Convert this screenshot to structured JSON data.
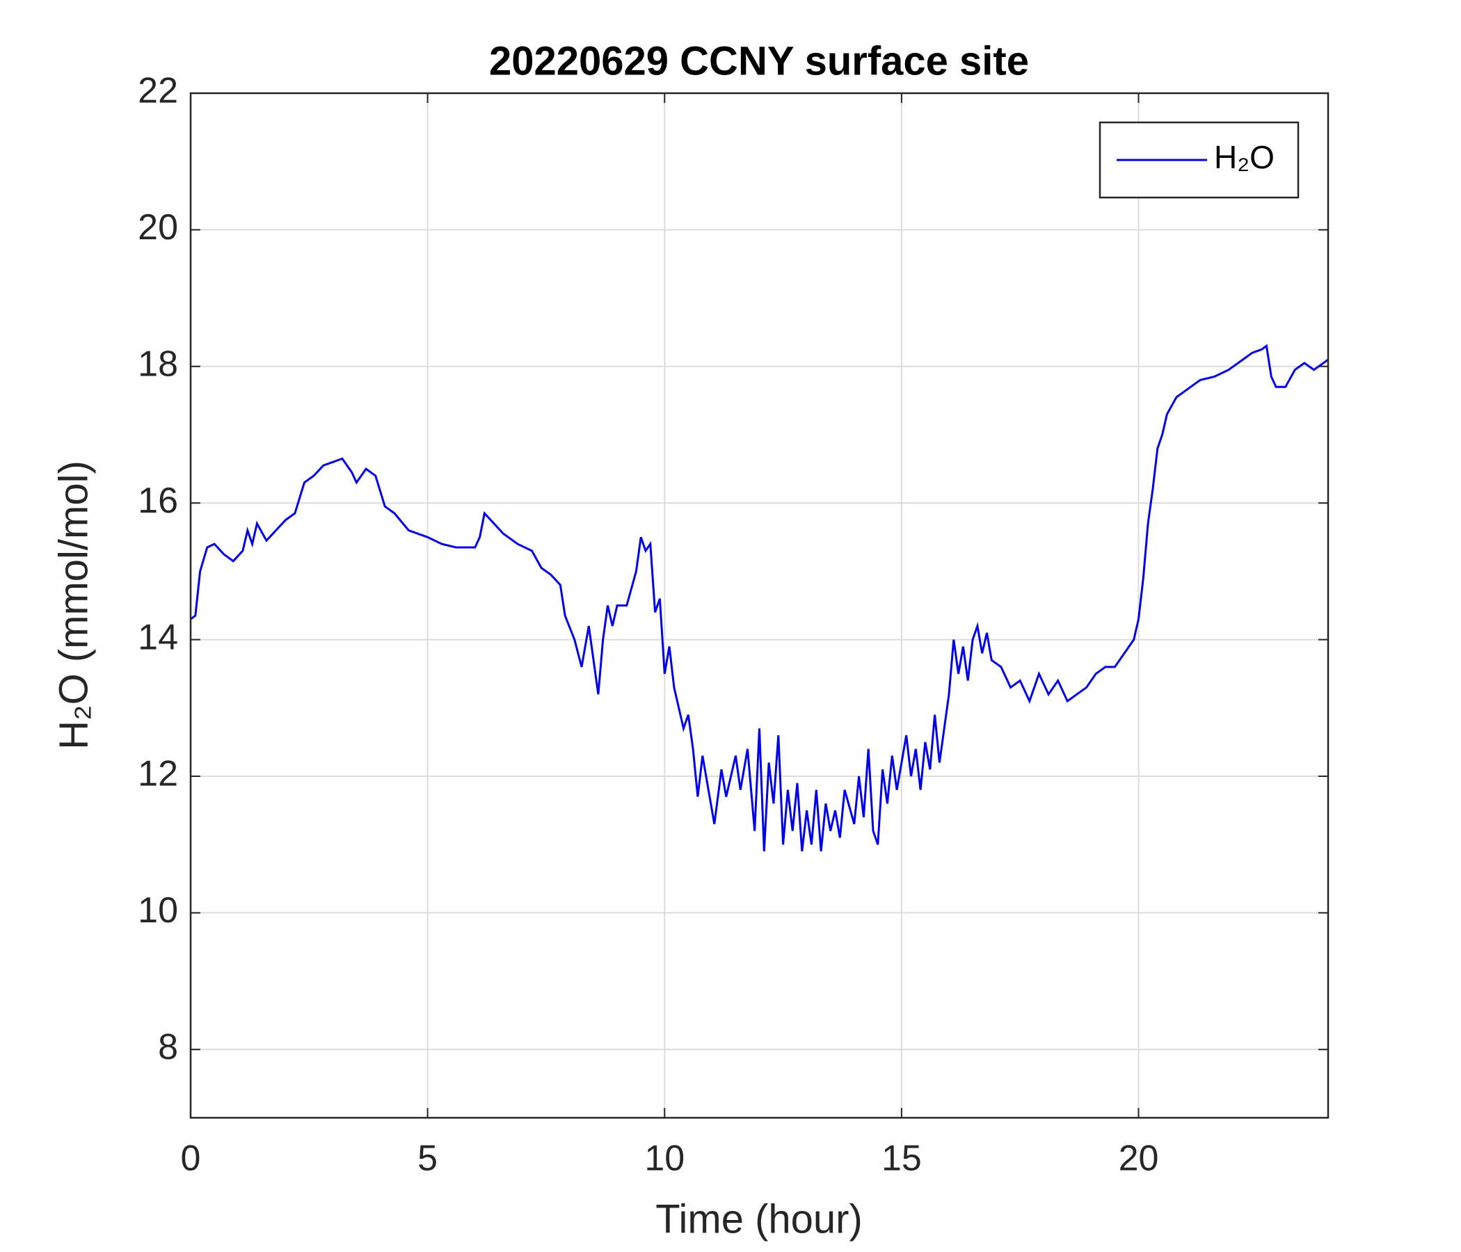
{
  "chart_data": {
    "type": "line",
    "title": "20220629 CCNY surface site",
    "xlabel": "Time (hour)",
    "ylabel": "H₂O (mmol/mol)",
    "xlim": [
      0,
      24
    ],
    "xticks": [
      0,
      5,
      10,
      15,
      20
    ],
    "ylim": [
      7,
      22
    ],
    "yticks": [
      8,
      10,
      12,
      14,
      16,
      18,
      20,
      22
    ],
    "grid": true,
    "legend": "top-right",
    "series": [
      {
        "name": "H₂O",
        "color": "#0000ee",
        "x": [
          0,
          0.1,
          0.2,
          0.35,
          0.5,
          0.7,
          0.9,
          1.1,
          1.2,
          1.3,
          1.4,
          1.6,
          1.8,
          2.0,
          2.2,
          2.4,
          2.6,
          2.8,
          3.0,
          3.2,
          3.4,
          3.5,
          3.7,
          3.9,
          4.1,
          4.3,
          4.6,
          5.0,
          5.3,
          5.6,
          6.0,
          6.1,
          6.2,
          6.4,
          6.6,
          6.9,
          7.2,
          7.4,
          7.6,
          7.8,
          7.9,
          8.1,
          8.25,
          8.4,
          8.5,
          8.6,
          8.7,
          8.8,
          8.9,
          9.0,
          9.2,
          9.4,
          9.5,
          9.6,
          9.7,
          9.8,
          9.9,
          10.0,
          10.1,
          10.2,
          10.4,
          10.5,
          10.6,
          10.7,
          10.8,
          10.95,
          11.05,
          11.2,
          11.3,
          11.5,
          11.6,
          11.75,
          11.9,
          12.0,
          12.1,
          12.2,
          12.3,
          12.4,
          12.5,
          12.6,
          12.7,
          12.8,
          12.9,
          13.0,
          13.1,
          13.2,
          13.3,
          13.4,
          13.5,
          13.6,
          13.7,
          13.8,
          14.0,
          14.1,
          14.2,
          14.3,
          14.4,
          14.5,
          14.6,
          14.7,
          14.8,
          14.9,
          15.1,
          15.2,
          15.3,
          15.4,
          15.5,
          15.6,
          15.7,
          15.8,
          15.9,
          16.0,
          16.1,
          16.2,
          16.3,
          16.4,
          16.5,
          16.6,
          16.7,
          16.8,
          16.9,
          17.1,
          17.3,
          17.5,
          17.7,
          17.9,
          18.1,
          18.3,
          18.5,
          18.7,
          18.9,
          19.1,
          19.3,
          19.5,
          19.7,
          19.9,
          20.0,
          20.1,
          20.2,
          20.3,
          20.4,
          20.5,
          20.6,
          20.8,
          21.0,
          21.3,
          21.6,
          21.9,
          22.2,
          22.4,
          22.6,
          22.7,
          22.8,
          22.9,
          23.1,
          23.3,
          23.5,
          23.7,
          24.0
        ],
        "values": [
          14.3,
          14.35,
          15.0,
          15.35,
          15.4,
          15.25,
          15.15,
          15.3,
          15.6,
          15.4,
          15.7,
          15.45,
          15.6,
          15.75,
          15.85,
          16.3,
          16.4,
          16.55,
          16.6,
          16.65,
          16.45,
          16.3,
          16.5,
          16.4,
          15.95,
          15.85,
          15.6,
          15.5,
          15.4,
          15.35,
          15.35,
          15.5,
          15.85,
          15.7,
          15.55,
          15.4,
          15.3,
          15.05,
          14.95,
          14.8,
          14.35,
          14.0,
          13.6,
          14.2,
          13.7,
          13.2,
          14.0,
          14.5,
          14.2,
          14.5,
          14.5,
          15.0,
          15.5,
          15.3,
          15.4,
          14.4,
          14.6,
          13.5,
          13.9,
          13.3,
          12.7,
          12.9,
          12.4,
          11.7,
          12.3,
          11.7,
          11.3,
          12.1,
          11.7,
          12.3,
          11.8,
          12.4,
          11.2,
          12.7,
          10.9,
          12.2,
          11.6,
          12.6,
          11.0,
          11.8,
          11.2,
          11.9,
          10.9,
          11.5,
          11.0,
          11.8,
          10.9,
          11.6,
          11.2,
          11.5,
          11.1,
          11.8,
          11.3,
          12.0,
          11.4,
          12.4,
          11.2,
          11.0,
          12.1,
          11.6,
          12.3,
          11.8,
          12.6,
          12.0,
          12.4,
          11.8,
          12.5,
          12.1,
          12.9,
          12.2,
          12.7,
          13.2,
          14.0,
          13.5,
          13.9,
          13.4,
          14.0,
          14.2,
          13.8,
          14.1,
          13.7,
          13.6,
          13.3,
          13.4,
          13.1,
          13.5,
          13.2,
          13.4,
          13.1,
          13.2,
          13.3,
          13.5,
          13.6,
          13.6,
          13.8,
          14.0,
          14.3,
          14.9,
          15.7,
          16.2,
          16.8,
          17.0,
          17.3,
          17.55,
          17.65,
          17.8,
          17.85,
          17.95,
          18.1,
          18.2,
          18.25,
          18.3,
          17.85,
          17.7,
          17.7,
          17.95,
          18.05,
          17.95,
          18.1
        ]
      }
    ]
  }
}
